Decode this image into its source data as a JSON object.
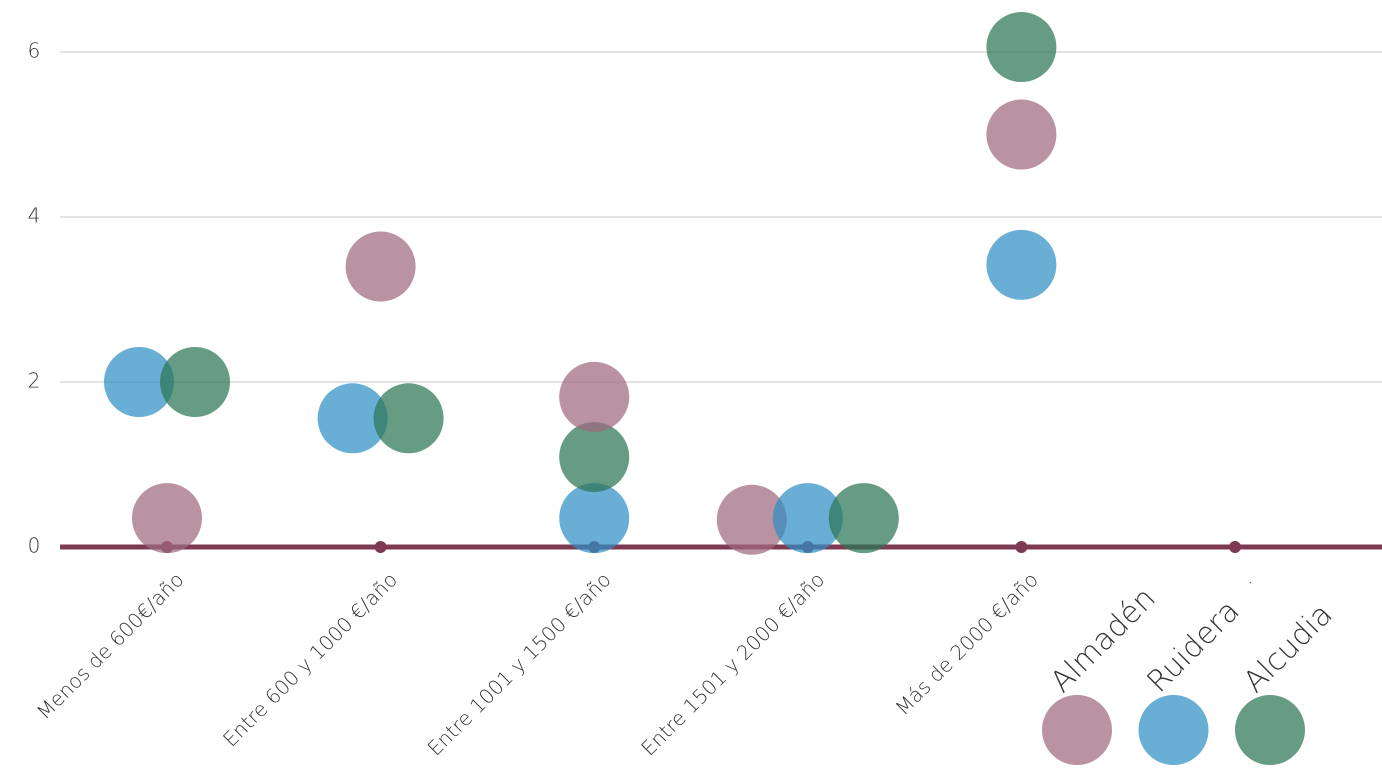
{
  "chart_data": {
    "type": "bubble-dot",
    "categories": [
      "Menos de 600€/año",
      "Entre 600 y 1000 €/año",
      "Entre 1001 y 1500 €/año",
      "Entre 1501 y 2000 €/año",
      "Más de 2000 €/año",
      "."
    ],
    "series": [
      {
        "name": "Almadén",
        "color": "#9e6a7e",
        "values": [
          0.35,
          3.4,
          1.82,
          0.33,
          5.0,
          null
        ]
      },
      {
        "name": "Ruidera",
        "color": "#2f8fc4",
        "values": [
          2.0,
          1.56,
          0.35,
          0.35,
          3.42,
          null
        ]
      },
      {
        "name": "Alcudia",
        "color": "#2b7655",
        "values": [
          2.0,
          1.56,
          1.09,
          0.35,
          6.06,
          null
        ]
      }
    ],
    "ylim": [
      0,
      6.5
    ],
    "yticks": [
      0,
      2,
      4,
      6
    ],
    "grid": true,
    "baseline_color": "#7d3a52"
  }
}
